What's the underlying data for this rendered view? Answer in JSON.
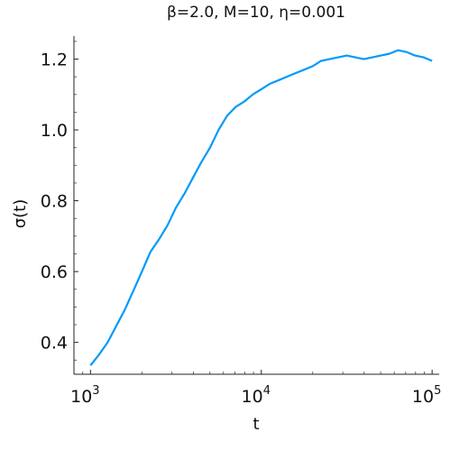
{
  "chart_data": {
    "type": "line",
    "title": "β=2.0, M=10, η=0.001",
    "xlabel": "t",
    "ylabel": "σ(t)",
    "x_scale": "log",
    "xlim": [
      800,
      110000
    ],
    "ylim": [
      0.31,
      1.265
    ],
    "x_ticks": [
      {
        "value": 1000,
        "base": "10",
        "exp": "3"
      },
      {
        "value": 10000,
        "base": "10",
        "exp": "4"
      },
      {
        "value": 100000,
        "base": "10",
        "exp": "5"
      }
    ],
    "y_ticks": [
      {
        "value": 0.4,
        "label": "0.4"
      },
      {
        "value": 0.6,
        "label": "0.6"
      },
      {
        "value": 0.8,
        "label": "0.8"
      },
      {
        "value": 1.0,
        "label": "1.0"
      },
      {
        "value": 1.2,
        "label": "1.2"
      }
    ],
    "grid": false,
    "line_color": "#009af9",
    "series": [
      {
        "x": [
          1000,
          1120,
          1260,
          1410,
          1580,
          1780,
          2000,
          2240,
          2510,
          2820,
          3160,
          3550,
          3980,
          4470,
          5010,
          5620,
          6310,
          7080,
          7940,
          8910,
          10000,
          11200,
          12600,
          14100,
          15800,
          17800,
          20000,
          22400,
          25100,
          28200,
          31600,
          35500,
          39800,
          44700,
          50100,
          56200,
          63100,
          70800,
          79400,
          89100,
          100000
        ],
        "values": [
          0.335,
          0.365,
          0.4,
          0.445,
          0.49,
          0.545,
          0.6,
          0.655,
          0.69,
          0.73,
          0.78,
          0.82,
          0.865,
          0.91,
          0.95,
          1.0,
          1.04,
          1.065,
          1.08,
          1.1,
          1.115,
          1.13,
          1.14,
          1.15,
          1.16,
          1.17,
          1.18,
          1.195,
          1.2,
          1.205,
          1.21,
          1.205,
          1.2,
          1.205,
          1.21,
          1.215,
          1.225,
          1.22,
          1.21,
          1.205,
          1.195
        ]
      }
    ]
  }
}
